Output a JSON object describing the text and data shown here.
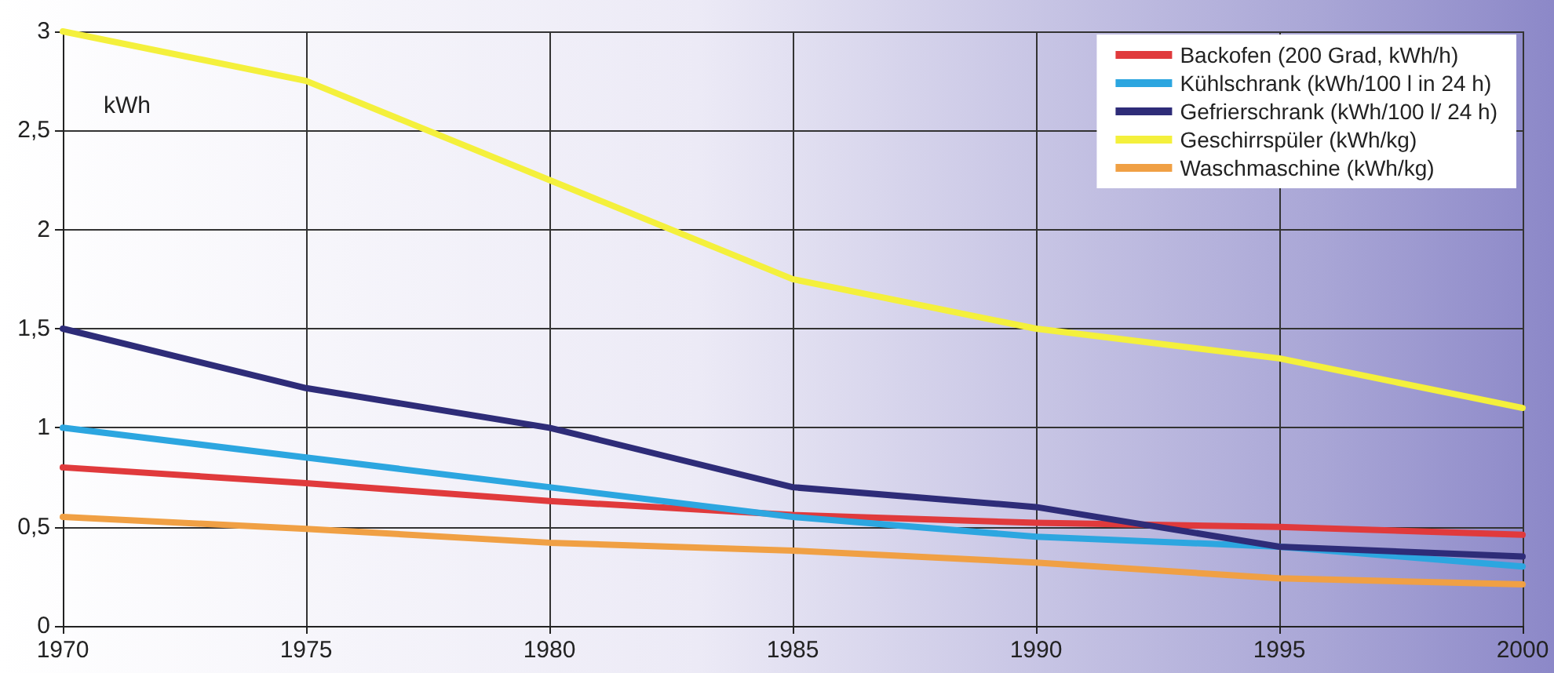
{
  "chart_data": {
    "type": "line",
    "ylabel": "kWh",
    "x": [
      1970,
      1975,
      1980,
      1985,
      1990,
      1995,
      2000
    ],
    "xlim": [
      1970,
      2000
    ],
    "xticks": [
      1970,
      1975,
      1980,
      1985,
      1990,
      1995,
      2000
    ],
    "ylim": [
      0,
      3
    ],
    "yticks": [
      0,
      {
        "value": 0.5,
        "label": "0,5"
      },
      1,
      {
        "value": 1.5,
        "label": "1,5"
      },
      2,
      {
        "value": 2.5,
        "label": "2,5"
      },
      3
    ],
    "grid": true,
    "legend": "top right",
    "marker": "none",
    "line_style": "solid",
    "series": [
      {
        "name": "Backofen (200 Grad, kWh/h)",
        "color": "#e03a3c",
        "values": [
          0.8,
          0.72,
          0.63,
          0.56,
          0.52,
          0.5,
          0.46
        ]
      },
      {
        "name": "Kühlschrank (kWh/100 l in 24 h)",
        "color": "#2ca6e0",
        "values": [
          1.0,
          0.85,
          0.7,
          0.55,
          0.45,
          0.4,
          0.3
        ]
      },
      {
        "name": "Gefrierschrank (kWh/100 l/ 24 h)",
        "color": "#2e2c78",
        "values": [
          1.5,
          1.2,
          1.0,
          0.7,
          0.6,
          0.4,
          0.35
        ]
      },
      {
        "name": "Geschirrspüler (kWh/kg)",
        "color": "#f4f03c",
        "values": [
          3.0,
          2.75,
          2.25,
          1.75,
          1.5,
          1.35,
          1.1
        ]
      },
      {
        "name": "Waschmaschine (kWh/kg)",
        "color": "#f0a044",
        "values": [
          0.55,
          0.49,
          0.42,
          0.38,
          0.32,
          0.24,
          0.21
        ]
      }
    ]
  }
}
